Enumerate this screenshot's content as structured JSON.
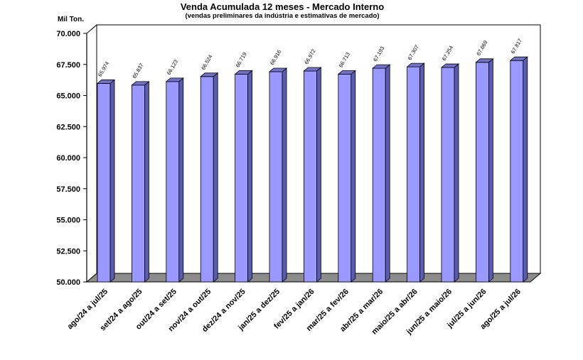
{
  "chart_data": {
    "type": "bar",
    "title": "Venda Acumulada 12 meses -  Mercado Interno",
    "subtitle": "(vendas preliminares da indústria e estimativas de mercado)",
    "unit_label": "Mil Ton.",
    "categories": [
      "ago/24 a jul/25",
      "set/24 a ago/25",
      "out/24 a set/25",
      "nov/24 a out/25",
      "dez/24 a nov/25",
      "jan/25 a dez/25",
      "fev/25 a jan/26",
      "mar/25 a fev/26",
      "abr/25 a mar/26",
      "maio/25 a abr/26",
      "jun/25 a maio/26",
      "jul/25 a jun/26",
      "ago/25 a jul/26"
    ],
    "values": [
      65.974,
      65.837,
      66.123,
      66.524,
      66.719,
      66.916,
      66.972,
      66.713,
      67.193,
      67.307,
      67.254,
      67.669,
      67.817
    ],
    "value_labels": [
      "65.974",
      "65.837",
      "66.123",
      "66.524",
      "66.719",
      "66.916",
      "66.972",
      "66.713",
      "67.193",
      "67.307",
      "67.254",
      "67.669",
      "67.817"
    ],
    "yticks": [
      "50.000",
      "52.500",
      "55.000",
      "57.500",
      "60.000",
      "62.500",
      "65.000",
      "67.500",
      "70.000"
    ],
    "ylim": [
      50,
      70
    ],
    "grid": false,
    "colors": {
      "bar_front": "#9999ff",
      "bar_side": "#5b5bb0",
      "bar_top": "#7272c8",
      "floor": "#8c8c8c",
      "wall": "#ffffff",
      "axis": "#000000"
    }
  }
}
